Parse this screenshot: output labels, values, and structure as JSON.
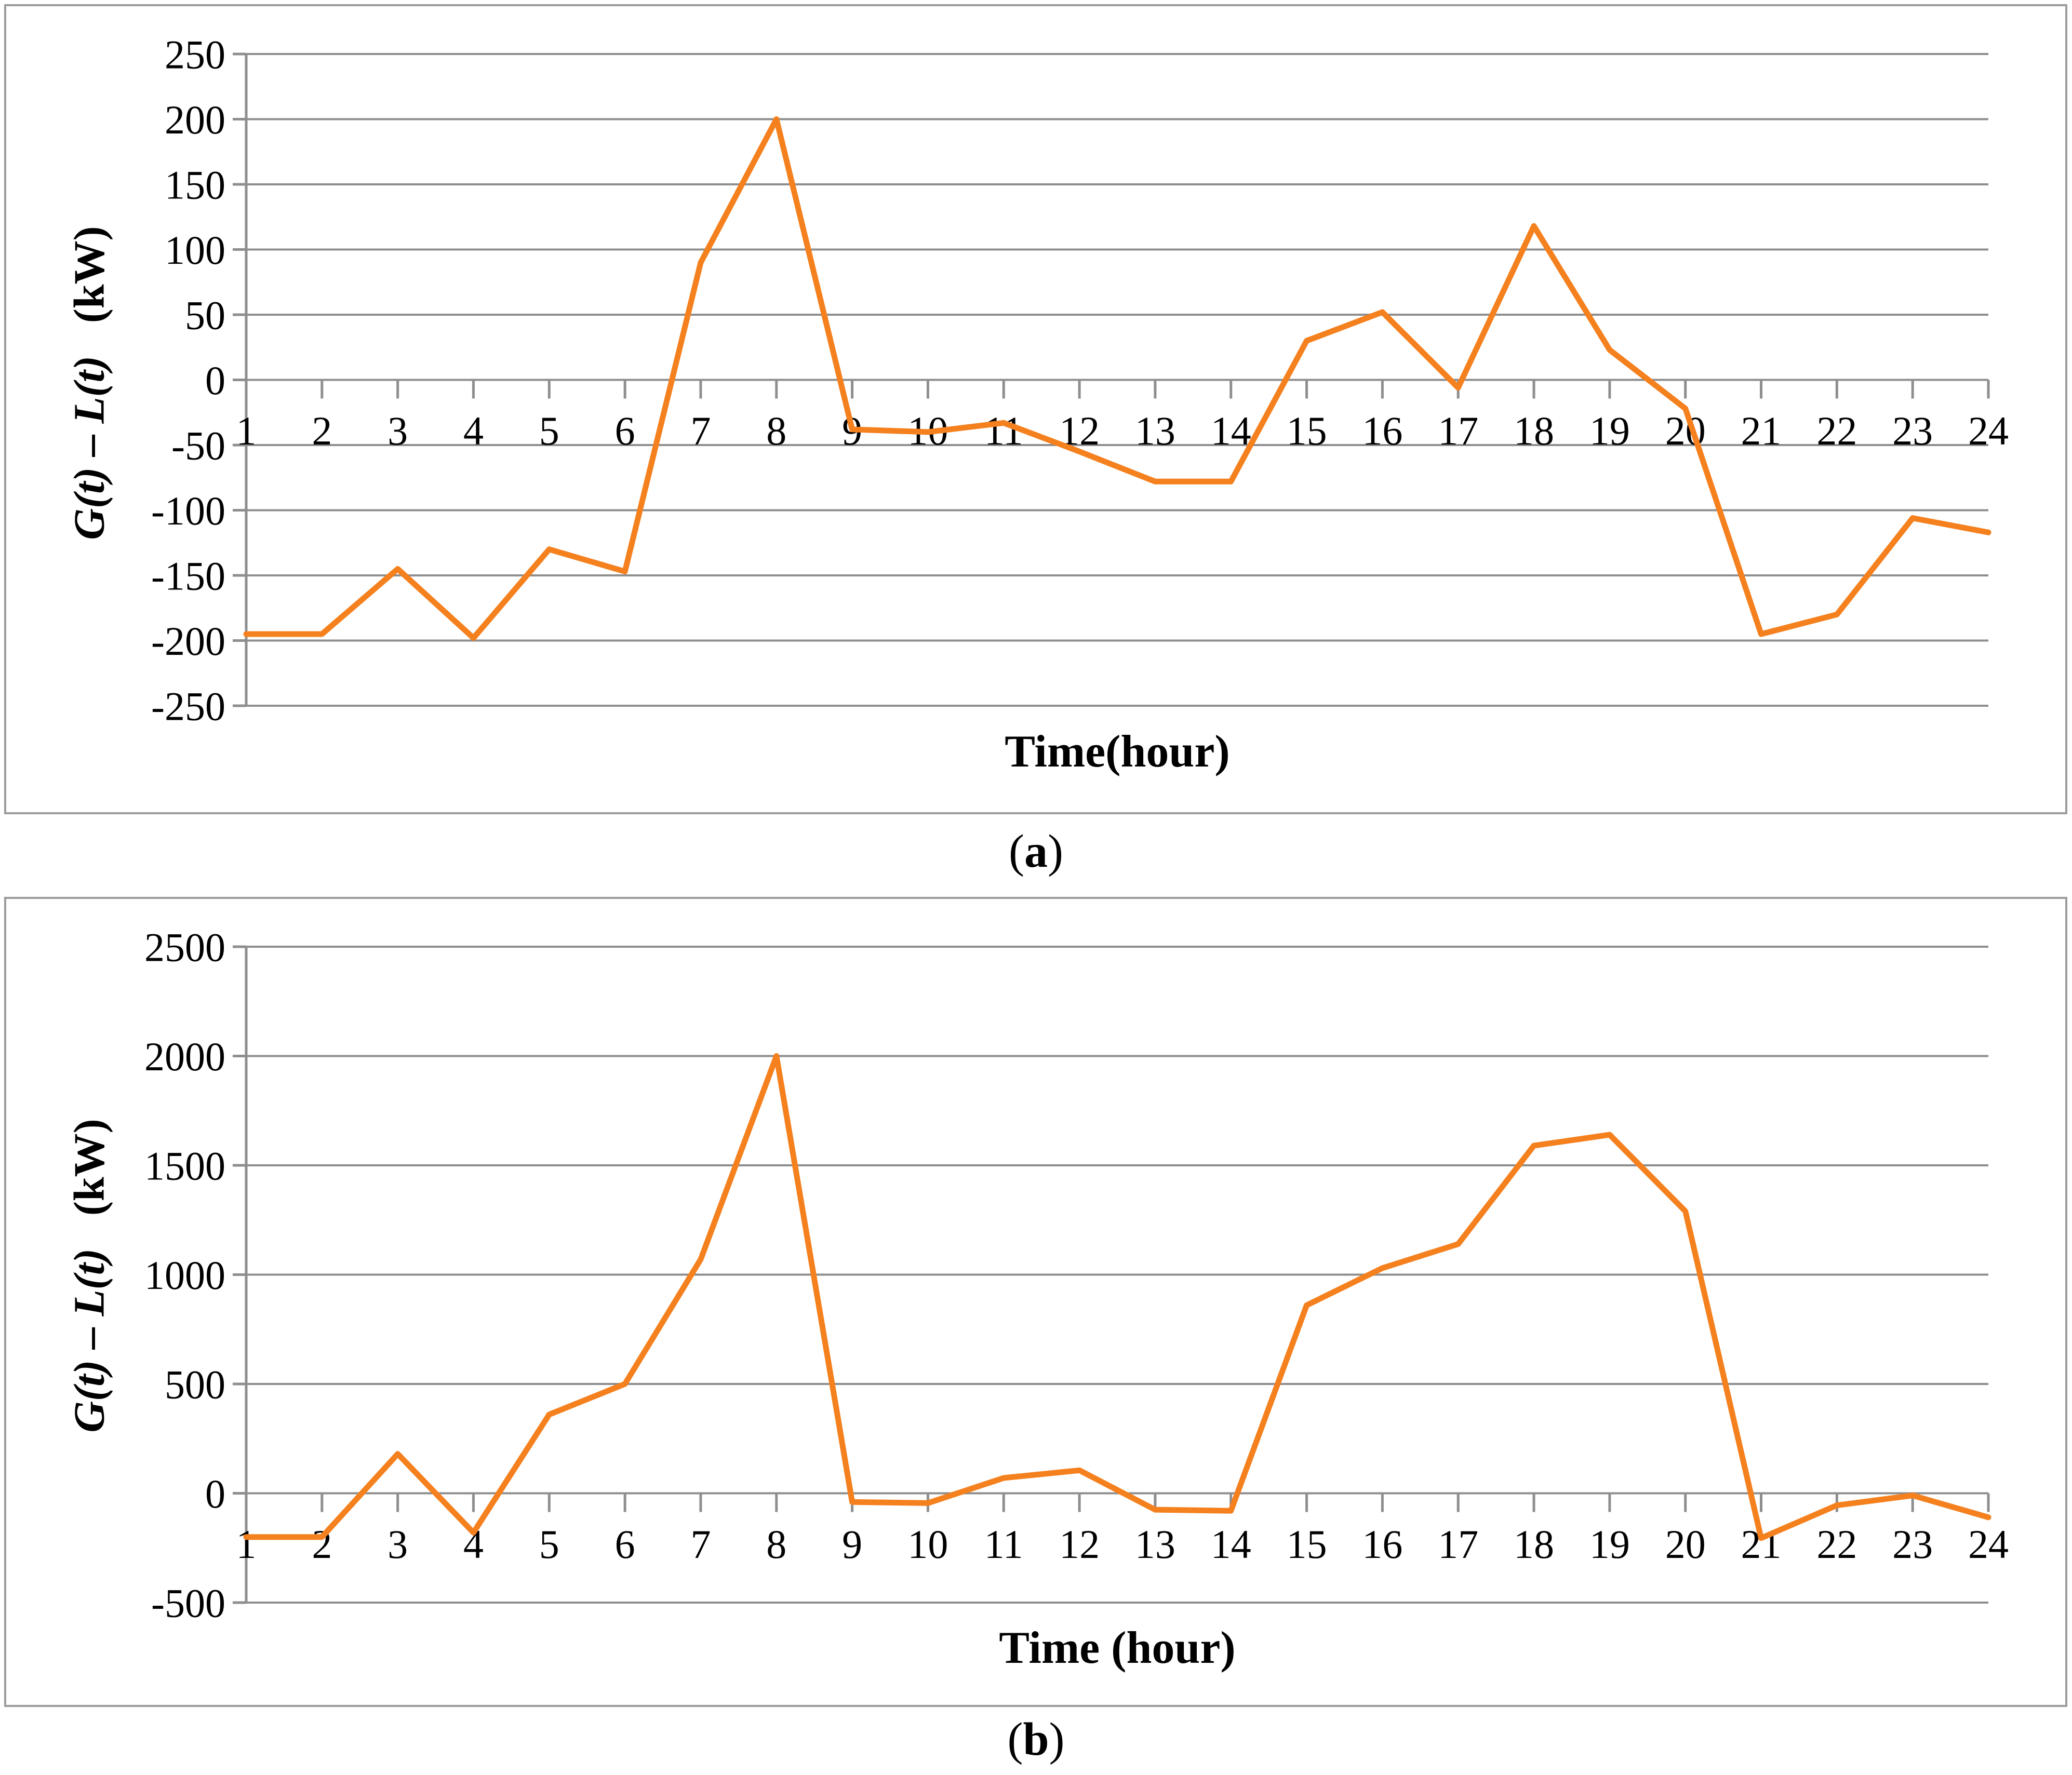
{
  "colors": {
    "line": "#F5801E",
    "grid": "#8E8E8E",
    "axis": "#8E8E8E",
    "panel_border": "#9C9C9C",
    "text": "#000000"
  },
  "captions": [
    {
      "open": "(",
      "letter": "a",
      "close": ")"
    },
    {
      "open": "(",
      "letter": "b",
      "close": ")"
    }
  ],
  "chart_data": [
    {
      "id": "a",
      "type": "line",
      "title": "",
      "xlabel": "Time(hour)",
      "ylabel_main": "G(t) – L(t)",
      "ylabel_unit": "(kW)",
      "caption": "(a)",
      "legend": "none",
      "grid": true,
      "x": [
        1,
        2,
        3,
        4,
        5,
        6,
        7,
        8,
        9,
        10,
        11,
        12,
        13,
        14,
        15,
        16,
        17,
        18,
        19,
        20,
        21,
        22,
        23,
        24
      ],
      "values": [
        -195,
        -195,
        -145,
        -198,
        -130,
        -147,
        90,
        200,
        -38,
        -40,
        -33,
        -55,
        -78,
        -78,
        30,
        52,
        -6,
        118,
        23,
        -22,
        -195,
        -180,
        -106,
        -117
      ],
      "ylim": [
        -250,
        250
      ],
      "y_ticks": [
        250,
        200,
        150,
        100,
        50,
        0,
        -50,
        -100,
        -150,
        -200,
        -250
      ]
    },
    {
      "id": "b",
      "type": "line",
      "title": "",
      "xlabel": "Time (hour)",
      "ylabel_main": "G(t) – L(t)",
      "ylabel_unit": "(kW)",
      "caption": "(b)",
      "legend": "none",
      "grid": true,
      "x": [
        1,
        2,
        3,
        4,
        5,
        6,
        7,
        8,
        9,
        10,
        11,
        12,
        13,
        14,
        15,
        16,
        17,
        18,
        19,
        20,
        21,
        22,
        23,
        24
      ],
      "values": [
        -200,
        -200,
        180,
        -180,
        360,
        500,
        1070,
        2000,
        -40,
        -45,
        70,
        105,
        -75,
        -80,
        860,
        1030,
        1140,
        1590,
        1640,
        1290,
        -205,
        -55,
        -10,
        -110
      ],
      "ylim": [
        -500,
        2500
      ],
      "y_ticks": [
        2500,
        2000,
        1500,
        1000,
        500,
        0,
        -500
      ]
    }
  ]
}
